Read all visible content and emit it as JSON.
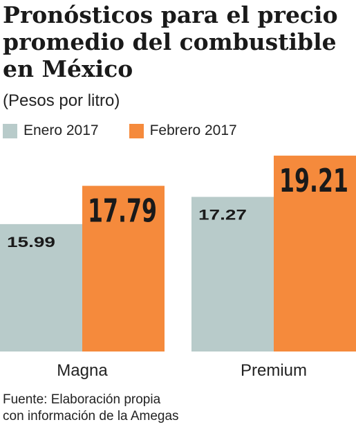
{
  "header": {
    "title_lines": [
      "Pronósticos para el precio",
      "promedio del combustible",
      "en México"
    ],
    "subtitle": "(Pesos por litro)"
  },
  "colors": {
    "enero": "#b8cbca",
    "febrero": "#f58a3c",
    "text": "#1a1a1a"
  },
  "chart_data": {
    "type": "bar",
    "categories": [
      "Magna",
      "Premium"
    ],
    "series": [
      {
        "name": "Enero 2017",
        "values": [
          15.99,
          17.27
        ]
      },
      {
        "name": "Febrero 2017",
        "values": [
          17.79,
          19.21
        ]
      }
    ],
    "value_labels": [
      [
        "15.99",
        "17.27"
      ],
      [
        "17.79",
        "19.21"
      ]
    ],
    "ylim": [
      10,
      19.5
    ],
    "grid": false,
    "legend_position": "top-left"
  },
  "footer": {
    "source_lines": [
      "Fuente: Elaboración propia",
      "con información de la Amegas"
    ]
  }
}
